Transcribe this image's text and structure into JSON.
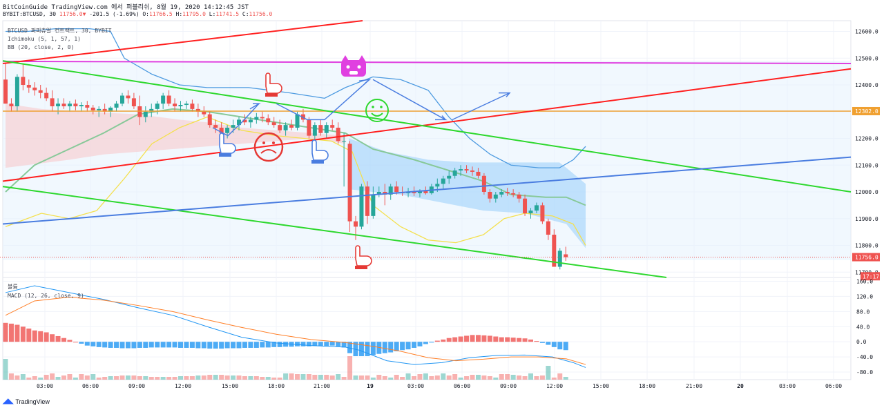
{
  "header": {
    "line1": "BitCoinGuide TradingView.com 에서 퍼블리쉬, 8월 19, 2020 14:12:45 JST",
    "symbol": "BYBIT:BTCUSD, 30",
    "change": "-201.5 (-1.69%)",
    "o_label": "O:",
    "o_val": "11766.5",
    "h_label": "H:",
    "h_val": "11795.0",
    "l_label": "L:",
    "l_val": "11741.5",
    "c_label": "C:",
    "c_val": "11756.0"
  },
  "legend": {
    "line1": "BTCUSD 퍼피츄얼 컨트랙트, 30, BYBIT",
    "line2": "Ichimoku (5, 1, 57, 1)",
    "line3": "BB (20, close, 2, 0)"
  },
  "lower_legend": {
    "volume": "볼륨",
    "macd": "MACD (12, 26, close, 9)"
  },
  "price_axis": {
    "ticks": [
      "12600.0",
      "12500.0",
      "12400.0",
      "12300.0",
      "12200.0",
      "12100.0",
      "12000.0",
      "11900.0",
      "11800.0",
      "11700.0"
    ],
    "tick_values": [
      12600,
      12500,
      12400,
      12300,
      12200,
      12100,
      12000,
      11900,
      11800,
      11700
    ],
    "label_12302": "12302.0",
    "label_last": "11756.0",
    "label_timer": "17:17"
  },
  "macd_axis": {
    "ticks": [
      "160.0",
      "120.0",
      "80.0",
      "40.0",
      "0.0",
      "-40.0",
      "-80.0"
    ],
    "tick_values": [
      160,
      120,
      80,
      40,
      0,
      -40,
      -80
    ]
  },
  "time_axis": {
    "labels": [
      "03:00",
      "06:00",
      "09:00",
      "12:00",
      "15:00",
      "18:00",
      "21:00",
      "19",
      "03:00",
      "06:00",
      "09:00",
      "12:00",
      "15:00",
      "18:00",
      "21:00",
      "20",
      "03:00",
      "06:00"
    ],
    "bold": [
      false,
      false,
      false,
      false,
      false,
      false,
      false,
      true,
      false,
      false,
      false,
      false,
      false,
      false,
      false,
      true,
      false,
      false
    ]
  },
  "footer": {
    "brand": "TradingView"
  },
  "chart_data": {
    "type": "candlestick",
    "price_range": [
      11680,
      12640
    ],
    "macd_range": [
      -100,
      170
    ],
    "candles": [
      [
        12420,
        12480,
        12330,
        12330
      ],
      [
        12330,
        12350,
        12300,
        12320
      ],
      [
        12320,
        12440,
        12300,
        12430
      ],
      [
        12430,
        12480,
        12380,
        12400
      ],
      [
        12400,
        12420,
        12370,
        12390
      ],
      [
        12390,
        12410,
        12360,
        12380
      ],
      [
        12380,
        12400,
        12350,
        12370
      ],
      [
        12370,
        12390,
        12340,
        12350
      ],
      [
        12350,
        12380,
        12300,
        12320
      ],
      [
        12320,
        12350,
        12290,
        12330
      ],
      [
        12330,
        12350,
        12310,
        12320
      ],
      [
        12320,
        12340,
        12300,
        12330
      ],
      [
        12330,
        12345,
        12305,
        12320
      ],
      [
        12320,
        12335,
        12300,
        12325
      ],
      [
        12325,
        12340,
        12300,
        12315
      ],
      [
        12315,
        12325,
        12290,
        12305
      ],
      [
        12305,
        12320,
        12280,
        12310
      ],
      [
        12310,
        12330,
        12290,
        12300
      ],
      [
        12300,
        12320,
        12280,
        12315
      ],
      [
        12315,
        12340,
        12300,
        12330
      ],
      [
        12330,
        12370,
        12320,
        12360
      ],
      [
        12360,
        12380,
        12330,
        12350
      ],
      [
        12350,
        12370,
        12310,
        12320
      ],
      [
        12320,
        12360,
        12250,
        12280
      ],
      [
        12280,
        12320,
        12260,
        12300
      ],
      [
        12300,
        12330,
        12280,
        12310
      ],
      [
        12310,
        12340,
        12290,
        12330
      ],
      [
        12330,
        12370,
        12310,
        12360
      ],
      [
        12360,
        12380,
        12320,
        12330
      ],
      [
        12330,
        12350,
        12300,
        12320
      ],
      [
        12320,
        12340,
        12300,
        12325
      ],
      [
        12325,
        12340,
        12310,
        12330
      ],
      [
        12330,
        12345,
        12300,
        12310
      ],
      [
        12310,
        12330,
        12280,
        12300
      ],
      [
        12300,
        12320,
        12280,
        12290
      ],
      [
        12290,
        12300,
        12240,
        12250
      ],
      [
        12250,
        12270,
        12220,
        12240
      ],
      [
        12240,
        12260,
        12210,
        12220
      ],
      [
        12220,
        12250,
        12200,
        12240
      ],
      [
        12240,
        12270,
        12220,
        12250
      ],
      [
        12250,
        12280,
        12230,
        12270
      ],
      [
        12270,
        12290,
        12250,
        12260
      ],
      [
        12260,
        12280,
        12240,
        12270
      ],
      [
        12270,
        12295,
        12255,
        12280
      ],
      [
        12280,
        12300,
        12260,
        12275
      ],
      [
        12275,
        12290,
        12250,
        12260
      ],
      [
        12260,
        12280,
        12240,
        12250
      ],
      [
        12250,
        12270,
        12220,
        12230
      ],
      [
        12230,
        12260,
        12210,
        12250
      ],
      [
        12250,
        12270,
        12230,
        12240
      ],
      [
        12240,
        12300,
        12230,
        12290
      ],
      [
        12290,
        12310,
        12260,
        12270
      ],
      [
        12270,
        12280,
        12200,
        12210
      ],
      [
        12210,
        12260,
        12190,
        12250
      ],
      [
        12250,
        12270,
        12210,
        12220
      ],
      [
        12220,
        12260,
        12200,
        12250
      ],
      [
        12250,
        12270,
        12230,
        12240
      ],
      [
        12240,
        12260,
        12180,
        12190
      ],
      [
        12190,
        12220,
        12020,
        12190
      ],
      [
        12180,
        12190,
        11850,
        11890
      ],
      [
        11890,
        11910,
        11820,
        11870
      ],
      [
        11870,
        12030,
        11860,
        12020
      ],
      [
        12020,
        12040,
        11880,
        11910
      ],
      [
        11910,
        12020,
        11900,
        11990
      ],
      [
        11990,
        12020,
        11980,
        12000
      ],
      [
        12000,
        12030,
        11950,
        11990
      ],
      [
        11990,
        12030,
        11970,
        12020
      ],
      [
        12020,
        12040,
        11990,
        12000
      ],
      [
        12000,
        12020,
        11985,
        11995
      ],
      [
        11995,
        12015,
        11980,
        12000
      ],
      [
        12000,
        12020,
        11985,
        11995
      ],
      [
        11995,
        12010,
        11980,
        12005
      ],
      [
        12005,
        12020,
        11990,
        11995
      ],
      [
        11995,
        12030,
        11990,
        12020
      ],
      [
        12020,
        12050,
        12000,
        12030
      ],
      [
        12030,
        12060,
        12010,
        12050
      ],
      [
        12050,
        12080,
        12030,
        12060
      ],
      [
        12060,
        12090,
        12050,
        12080
      ],
      [
        12080,
        12100,
        12060,
        12085
      ],
      [
        12085,
        12100,
        12070,
        12080
      ],
      [
        12080,
        12095,
        12060,
        12075
      ],
      [
        12075,
        12090,
        12050,
        12060
      ],
      [
        12060,
        12070,
        11990,
        12000
      ],
      [
        12000,
        12010,
        11960,
        11975
      ],
      [
        11975,
        12000,
        11960,
        11990
      ],
      [
        11990,
        12010,
        11980,
        12000
      ],
      [
        12000,
        12015,
        11985,
        11995
      ],
      [
        11995,
        12010,
        11980,
        11990
      ],
      [
        11990,
        12000,
        11960,
        11975
      ],
      [
        11975,
        11990,
        11910,
        11920
      ],
      [
        11920,
        11940,
        11900,
        11930
      ],
      [
        11930,
        11960,
        11920,
        11950
      ],
      [
        11950,
        11960,
        11880,
        11890
      ],
      [
        11890,
        11900,
        11820,
        11840
      ],
      [
        11840,
        11860,
        11720,
        11720
      ],
      [
        11720,
        11790,
        11710,
        11780
      ],
      [
        11766.5,
        11795,
        11741.5,
        11756
      ]
    ],
    "annotations": {
      "horizontal_levels": [
        12302,
        12480
      ],
      "trendlines": "red ascending channel, green descending channel, blue support line"
    }
  },
  "colors": {
    "up": "#26a69a",
    "down": "#ef5350",
    "red_line": "#ff1f1f",
    "green_line": "#2ed82e",
    "magenta_line": "#e040e0",
    "orange_line": "#f0a030",
    "blue_line": "#4a7de0",
    "axis_text": "#131722"
  }
}
